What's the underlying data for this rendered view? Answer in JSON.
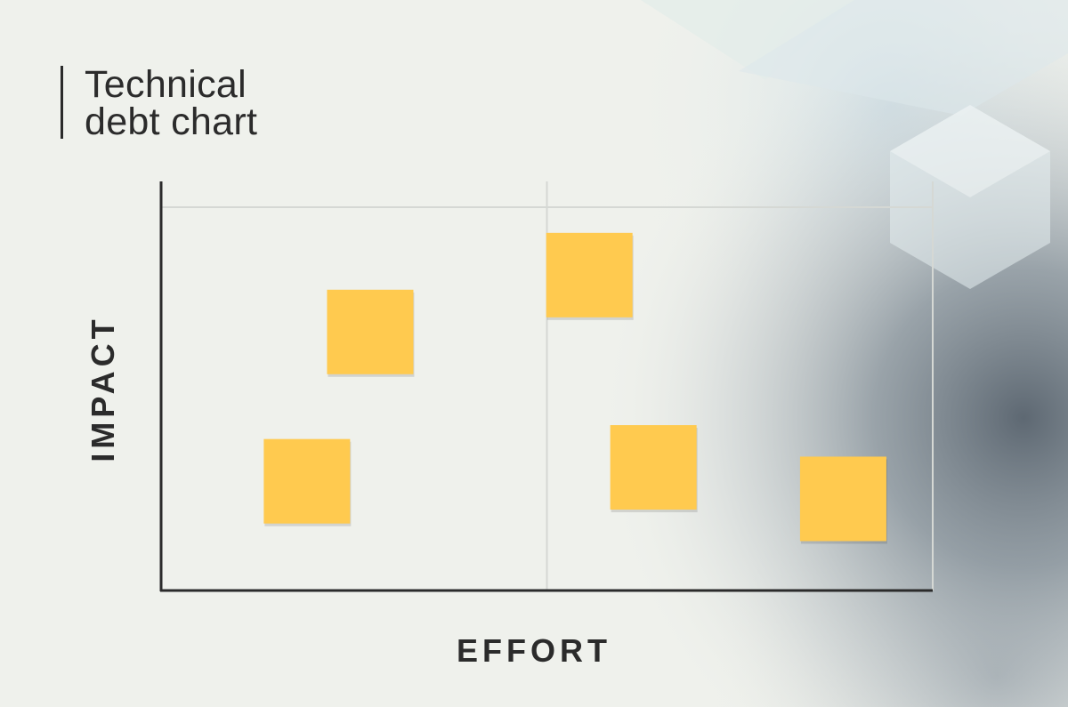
{
  "title": {
    "line1": "Technical",
    "line2": "debt chart"
  },
  "chart_data": {
    "type": "quadrant",
    "xlabel": "EFFORT",
    "ylabel": "IMPACT",
    "quadrant_divider": "vertical at midpoint",
    "xlim": [
      0,
      1
    ],
    "ylim": [
      0,
      1
    ],
    "items": [
      {
        "x": 0.271,
        "y": 0.632
      },
      {
        "x": 0.189,
        "y": 0.267
      },
      {
        "x": 0.555,
        "y": 0.771
      },
      {
        "x": 0.638,
        "y": 0.301
      },
      {
        "x": 0.884,
        "y": 0.224
      }
    ]
  },
  "colors": {
    "note": "#ffca4f",
    "axis": "#2b2b2b",
    "grid": "#d5d8d4",
    "text": "#2b2b2b"
  }
}
